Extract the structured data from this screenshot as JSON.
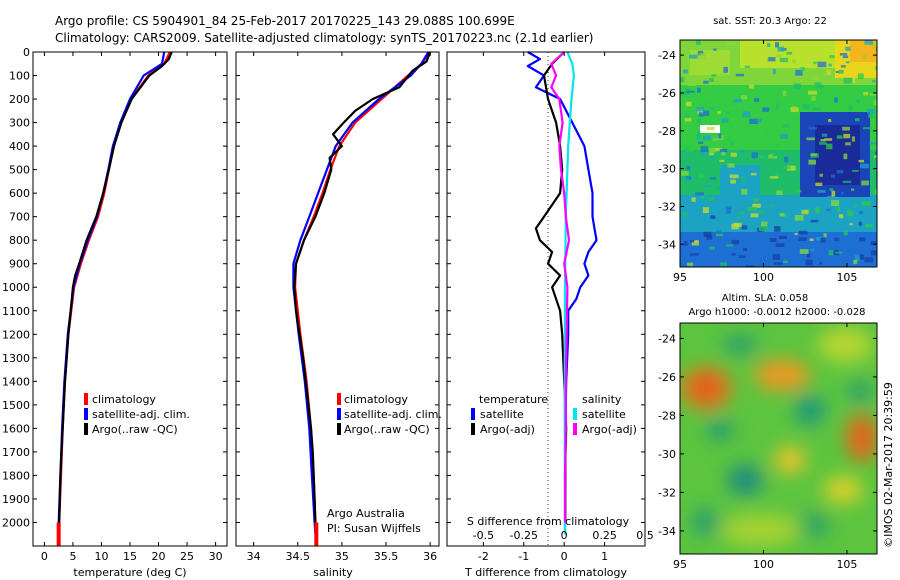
{
  "header": {
    "line1": "Argo profile: CS 5904901_84 25-Feb-2017 20170225_143 29.088S 100.699E",
    "line2": "Climatology: CARS2009. Satellite-adjusted climatology: synTS_20170223.nc (2.1d earlier)"
  },
  "side_stamp": "©IMOS 02-Mar-2017 20:39:59",
  "chart_data": [
    {
      "type": "line",
      "id": "temperature",
      "xlabel": "temperature (deg C)",
      "ylabel": "",
      "xlim": [
        -2,
        32
      ],
      "ylim": [
        2100,
        0
      ],
      "xticks": [
        0,
        5,
        10,
        15,
        20,
        25,
        30
      ],
      "xticklabels": [
        "0",
        "5",
        "10",
        "15",
        "20",
        "25",
        "30"
      ],
      "yticks": [
        0,
        100,
        200,
        300,
        400,
        500,
        600,
        700,
        800,
        900,
        1000,
        1100,
        1200,
        1300,
        1400,
        1500,
        1600,
        1700,
        1800,
        1900,
        2000
      ],
      "yticklabels": [
        "0",
        "100",
        "200",
        "300",
        "400",
        "500",
        "600",
        "700",
        "800",
        "900",
        "1000",
        "1100",
        "1200",
        "1300",
        "1400",
        "1500",
        "1600",
        "1700",
        "1800",
        "1900",
        "2000"
      ],
      "legend": [
        "climatology",
        "satellite-adj. clim.",
        "Argo(..raw -QC)"
      ],
      "series": [
        {
          "name": "climatology",
          "color": "#ff0000",
          "depth": [
            0,
            50,
            100,
            200,
            300,
            400,
            500,
            600,
            700,
            800,
            900,
            1000,
            1200,
            1400,
            1600,
            1800,
            2000,
            2050
          ],
          "values": [
            22.0,
            21.0,
            18.2,
            15.2,
            13.4,
            12.1,
            11.3,
            10.5,
            9.4,
            7.8,
            6.4,
            5.2,
            4.2,
            3.6,
            3.2,
            2.9,
            2.6,
            2.5
          ]
        },
        {
          "name": "satellite-adj. clim.",
          "color": "#0000ff",
          "depth": [
            0,
            50,
            100,
            200,
            300,
            400,
            500,
            600,
            700,
            800,
            900,
            1000,
            1200,
            1400,
            1600,
            1800,
            2000,
            2050
          ],
          "values": [
            21.0,
            20.6,
            17.4,
            15.0,
            13.3,
            12.0,
            11.2,
            10.3,
            9.2,
            7.6,
            6.2,
            5.1,
            4.1,
            3.5,
            3.1,
            2.8,
            2.5,
            2.5
          ]
        },
        {
          "name": "Argo(..raw -QC)",
          "color": "#000000",
          "depth": [
            0,
            30,
            60,
            100,
            200,
            300,
            400,
            500,
            600,
            700,
            800,
            900,
            950,
            1000,
            1100,
            1200,
            1300,
            1400,
            1500,
            1600,
            1700,
            1800,
            1900,
            2000
          ],
          "values": [
            22.3,
            21.8,
            20.6,
            18.4,
            15.3,
            13.5,
            12.2,
            11.3,
            10.3,
            9.1,
            7.4,
            6.1,
            5.4,
            5.0,
            4.6,
            4.2,
            3.9,
            3.6,
            3.4,
            3.2,
            3.0,
            2.8,
            2.7,
            2.6
          ]
        }
      ]
    },
    {
      "type": "line",
      "id": "salinity",
      "xlabel": "salinity",
      "xlim": [
        33.8,
        36.1
      ],
      "ylim": [
        2100,
        0
      ],
      "xticks": [
        34,
        34.5,
        35,
        35.5,
        36
      ],
      "xticklabels": [
        "34",
        "34.5",
        "35",
        "35.5",
        "36"
      ],
      "legend": [
        "climatology",
        "satellite-adj. clim.",
        "Argo(..raw -QC)"
      ],
      "annotations": [
        "Argo Australia",
        "PI: Susan Wijffels"
      ],
      "series": [
        {
          "name": "climatology",
          "color": "#ff0000",
          "depth": [
            0,
            50,
            100,
            200,
            300,
            400,
            500,
            600,
            700,
            800,
            900,
            1000,
            1200,
            1400,
            1600,
            1800,
            2000,
            2050
          ],
          "values": [
            36.0,
            35.9,
            35.75,
            35.45,
            35.15,
            34.97,
            34.87,
            34.78,
            34.68,
            34.57,
            34.48,
            34.47,
            34.53,
            34.6,
            34.65,
            34.68,
            34.7,
            34.71
          ]
        },
        {
          "name": "satellite-adj. clim.",
          "color": "#0000ff",
          "depth": [
            0,
            50,
            100,
            200,
            300,
            400,
            500,
            600,
            700,
            800,
            900,
            1000,
            1200,
            1400,
            1600,
            1800,
            2000,
            2050
          ],
          "values": [
            35.98,
            35.9,
            35.78,
            35.42,
            35.12,
            34.93,
            34.83,
            34.73,
            34.63,
            34.53,
            34.45,
            34.45,
            34.51,
            34.58,
            34.63,
            34.66,
            34.69,
            34.7
          ]
        },
        {
          "name": "Argo(..raw -QC)",
          "color": "#000000",
          "depth": [
            0,
            40,
            80,
            150,
            200,
            250,
            300,
            350,
            400,
            450,
            500,
            600,
            700,
            800,
            900,
            1000,
            1100,
            1200,
            1300,
            1400,
            1500,
            1600,
            1700,
            1800,
            1900,
            2000
          ],
          "values": [
            36.0,
            35.96,
            35.8,
            35.65,
            35.35,
            35.15,
            35.02,
            34.9,
            35.0,
            34.86,
            34.88,
            34.8,
            34.7,
            34.57,
            34.48,
            34.46,
            34.48,
            34.52,
            34.56,
            34.59,
            34.62,
            34.65,
            34.67,
            34.68,
            34.69,
            34.7
          ]
        }
      ]
    },
    {
      "type": "line",
      "id": "difference",
      "xlabel": "T difference from climatology",
      "x2label": "S difference from climatology",
      "xlim": [
        -2.9,
        2.0
      ],
      "ylim": [
        2100,
        0
      ],
      "xticks": [
        -2,
        -1,
        0,
        1
      ],
      "xticklabels": [
        "-2",
        "-1",
        "0",
        "1"
      ],
      "s_scale_factor": 4,
      "sticks": [
        -0.5,
        -0.25,
        0,
        0.25,
        0.5
      ],
      "sticklabels": [
        "-0.5",
        "-0.25",
        "0",
        "0.25",
        "0.5"
      ],
      "legend_titles": [
        "temperature",
        "salinity"
      ],
      "legend": [
        "satellite",
        "Argo(-adj)",
        "satellite",
        "Argo(-adj)"
      ],
      "series": [
        {
          "name": "T satellite",
          "color": "#0000ff",
          "depth": [
            0,
            30,
            60,
            100,
            150,
            200,
            300,
            400,
            500,
            600,
            700,
            800,
            850,
            900,
            950,
            1000,
            1050,
            1100,
            1200,
            1400,
            1600,
            1800,
            2000,
            2050
          ],
          "values": [
            -0.9,
            -0.6,
            -0.9,
            -0.5,
            -0.7,
            -0.1,
            0.2,
            0.5,
            0.6,
            0.7,
            0.7,
            0.8,
            0.6,
            0.5,
            0.6,
            0.4,
            0.3,
            0.1,
            0.1,
            0.05,
            0.03,
            0.03,
            0.02,
            0.02
          ]
        },
        {
          "name": "T Argo(-adj)",
          "color": "#000000",
          "depth": [
            0,
            50,
            100,
            200,
            300,
            400,
            500,
            600,
            700,
            750,
            800,
            850,
            900,
            950,
            1000,
            1100,
            1200,
            1400,
            1600,
            1800,
            2000
          ],
          "values": [
            0.0,
            -0.3,
            -0.5,
            -0.4,
            -0.2,
            -0.1,
            -0.05,
            -0.1,
            -0.5,
            -0.7,
            -0.6,
            -0.3,
            -0.4,
            -0.1,
            -0.3,
            -0.1,
            -0.05,
            0.0,
            0.05,
            0.02,
            0.03
          ]
        },
        {
          "name": "S satellite",
          "color": "#00e5ee",
          "depth": [
            0,
            50,
            100,
            200,
            300,
            400,
            500,
            700,
            1000,
            1500,
            2000,
            2050
          ],
          "values": [
            0.02,
            0.05,
            0.06,
            0.045,
            0.035,
            0.025,
            0.02,
            0.01,
            0.005,
            0.003,
            0.005,
            0.005
          ]
        },
        {
          "name": "S Argo(-adj)",
          "color": "#ff00ff",
          "depth": [
            0,
            50,
            100,
            150,
            200,
            300,
            400,
            500,
            600,
            700,
            800,
            900,
            1000,
            1200,
            1400,
            1600,
            1800,
            2000
          ],
          "values": [
            0.0,
            -0.08,
            -0.05,
            -0.08,
            -0.03,
            -0.01,
            -0.03,
            -0.02,
            0.0,
            0.01,
            0.03,
            0.0,
            0.02,
            0.015,
            0.01,
            0.01,
            0.005,
            0.005
          ]
        }
      ]
    }
  ],
  "maps": {
    "sst": {
      "title": "sat. SST: 20.3 Argo: 22",
      "yticklabels": [
        "-24",
        "-26",
        "-28",
        "-30",
        "-32",
        "-34"
      ],
      "xticklabels": [
        "95",
        "100",
        "105"
      ]
    },
    "sla": {
      "title_line1": "Altim. SLA: 0.058",
      "title_line2": "Argo h1000: -0.0012 h2000: -0.028",
      "yticklabels": [
        "-24",
        "-26",
        "-28",
        "-30",
        "-32",
        "-34"
      ],
      "xticklabels": [
        "95",
        "100",
        "105"
      ]
    }
  }
}
